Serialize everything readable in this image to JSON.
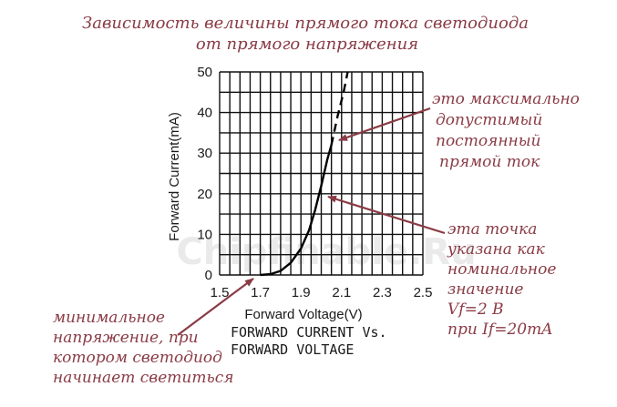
{
  "chart_data": {
    "type": "line",
    "title_line1": "Зависимость величины прямого тока светодиода",
    "title_line2": "от  прямого напряжения",
    "xlabel": "Forward Voltage(V)",
    "ylabel": "Forward Current(mA)",
    "caption_line1": "FORWARD CURRENT Vs.",
    "caption_line2": "FORWARD VOLTAGE",
    "xlim": [
      1.5,
      2.5
    ],
    "ylim": [
      0,
      50
    ],
    "x_ticks": [
      "1.5",
      "1.7",
      "1.9",
      "2.1",
      "2.3",
      "2.5"
    ],
    "y_ticks": [
      "0",
      "10",
      "20",
      "30",
      "40",
      "50"
    ],
    "grid": true,
    "series": [
      {
        "style": "solid",
        "points": [
          [
            1.7,
            0
          ],
          [
            1.75,
            0.2
          ],
          [
            1.8,
            1
          ],
          [
            1.85,
            3
          ],
          [
            1.9,
            6.5
          ],
          [
            1.94,
            11
          ],
          [
            1.97,
            16
          ],
          [
            2.0,
            22
          ],
          [
            2.03,
            28.5
          ],
          [
            2.05,
            32
          ]
        ]
      },
      {
        "style": "dashed",
        "points": [
          [
            2.05,
            32
          ],
          [
            2.08,
            39
          ],
          [
            2.11,
            45
          ],
          [
            2.13,
            50
          ]
        ]
      }
    ],
    "annotations": [
      {
        "lines": [
          "это максимально",
          "допустимый",
          "постоянный",
          "прямой ток"
        ],
        "point": [
          2.05,
          32
        ]
      },
      {
        "lines": [
          "эта точка",
          "указана как",
          "номинальное",
          "значение",
          "Vf=2 В",
          "при If=20mA"
        ],
        "point": [
          2.0,
          20
        ]
      },
      {
        "lines": [
          "минимальное",
          "напряжение, при",
          "котором светодиод",
          "начинает светиться"
        ],
        "point": [
          1.7,
          0
        ]
      }
    ]
  },
  "colors": {
    "annotation": "#8a3b45",
    "grid": "#111111",
    "curve": "#000000"
  },
  "watermark": "Chipfinable.Ru"
}
